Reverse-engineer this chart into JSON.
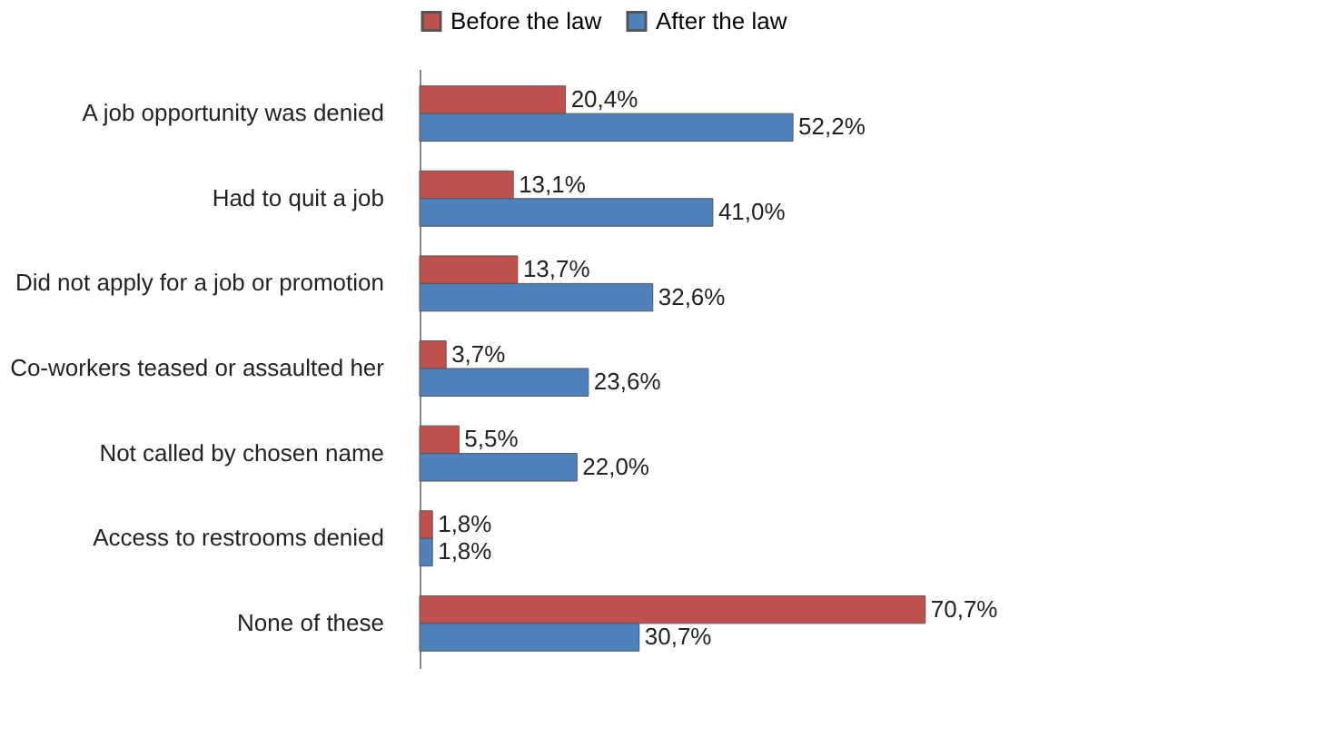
{
  "chart_data": {
    "type": "bar",
    "orientation": "horizontal",
    "legend": "top",
    "categories": [
      "A job opportunity was denied",
      "Had to quit a job",
      "Did not apply for a job or promotion",
      "Co-workers teased or assaulted her",
      "Not called by chosen name",
      "Access to restrooms denied",
      "None of these"
    ],
    "series": [
      {
        "name": "Before the law",
        "color": "#c0504d",
        "values": [
          20.4,
          13.1,
          13.7,
          3.7,
          5.5,
          1.8,
          70.7
        ],
        "value_labels": [
          "20,4%",
          "13,1%",
          "13,7%",
          "3,7%",
          "5,5%",
          "1,8%",
          "70,7%"
        ]
      },
      {
        "name": "After the law",
        "color": "#4f81bd",
        "values": [
          52.2,
          41.0,
          32.6,
          23.6,
          22.0,
          1.8,
          30.7
        ],
        "value_labels": [
          "52,2%",
          "41,0%",
          "32,6%",
          "23,6%",
          "22,0%",
          "1,8%",
          "30,7%"
        ]
      }
    ]
  }
}
